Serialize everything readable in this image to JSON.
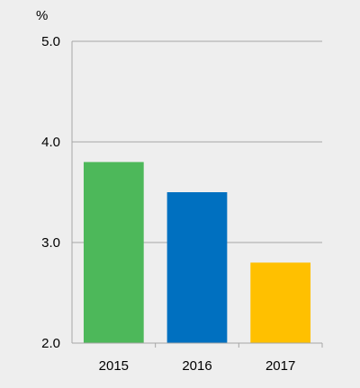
{
  "chart_data": {
    "type": "bar",
    "title": "",
    "xlabel": "",
    "ylabel": "%",
    "categories": [
      "2015",
      "2016",
      "2017"
    ],
    "values": [
      3.8,
      3.5,
      2.8
    ],
    "bar_colors": [
      "#4db85a",
      "#0070c0",
      "#ffc000"
    ],
    "ylim": [
      2.0,
      5.0
    ],
    "y_ticks": [
      "2.0",
      "3.0",
      "4.0",
      "5.0"
    ],
    "grid": true,
    "legend": "none",
    "colors": {
      "background": "#eeeeee",
      "grid": "#a6a6a6",
      "axis": "#a6a6a6",
      "text": "#000000"
    }
  }
}
